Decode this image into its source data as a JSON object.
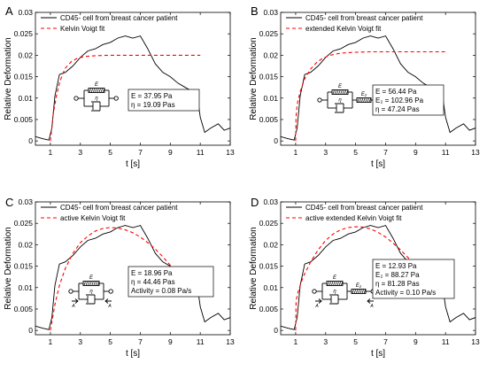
{
  "chart_data": [
    {
      "panel_label": "A",
      "type": "line",
      "xlabel": "t [s]",
      "ylabel": "Relative Deformation",
      "xlim": [
        0,
        13
      ],
      "ylim": [
        -0.001,
        0.03
      ],
      "xticks": [
        1,
        3,
        5,
        7,
        9,
        11,
        13
      ],
      "yticks": [
        0,
        0.005,
        0.01,
        0.015,
        0.02,
        0.025,
        0.03
      ],
      "legend_position": "top-left",
      "series": [
        {
          "name": "CD45- cell from breast cancer patient",
          "style": "solid",
          "color": "#000000",
          "x": [
            0.0,
            0.5,
            0.9,
            1.1,
            1.3,
            1.6,
            2.0,
            2.5,
            3.0,
            3.5,
            4.0,
            4.5,
            5.0,
            5.5,
            6.0,
            6.5,
            7.0,
            7.5,
            8.0,
            8.5,
            9.0,
            9.5,
            10.0,
            10.5,
            10.8,
            11.0,
            11.3,
            11.7,
            12.2,
            12.6,
            13.0
          ],
          "y": [
            0.001,
            0.0005,
            0.0002,
            0.003,
            0.0105,
            0.0155,
            0.016,
            0.0175,
            0.0195,
            0.021,
            0.0215,
            0.0225,
            0.023,
            0.024,
            0.0245,
            0.024,
            0.0245,
            0.0215,
            0.018,
            0.016,
            0.015,
            0.0135,
            0.0125,
            0.0115,
            0.0105,
            0.0055,
            0.002,
            0.003,
            0.004,
            0.0025,
            0.003
          ]
        },
        {
          "name": "Kelvin Voigt fit",
          "style": "dashed",
          "color": "#ff0000",
          "x": [
            1.0,
            1.2,
            1.4,
            1.6,
            1.8,
            2.0,
            2.4,
            2.8,
            3.3,
            4.0,
            5.0,
            6.0,
            7.0,
            8.0,
            9.0,
            10.0,
            11.0
          ],
          "y": [
            0.0,
            0.0065,
            0.0105,
            0.0135,
            0.0155,
            0.017,
            0.0185,
            0.0193,
            0.0197,
            0.0199,
            0.02,
            0.02,
            0.02,
            0.02,
            0.02,
            0.02,
            0.02
          ]
        }
      ],
      "params": [
        "E = 37.95 Pa",
        "η = 19.09 Pas"
      ],
      "model": "kelvin-voigt"
    },
    {
      "panel_label": "B",
      "type": "line",
      "xlabel": "t [s]",
      "ylabel": "Relative Deformation",
      "xlim": [
        0,
        13
      ],
      "ylim": [
        -0.001,
        0.03
      ],
      "xticks": [
        1,
        3,
        5,
        7,
        9,
        11,
        13
      ],
      "yticks": [
        0,
        0.005,
        0.01,
        0.015,
        0.02,
        0.025,
        0.03
      ],
      "legend_position": "top-left",
      "series": [
        {
          "name": "CD45- cell from breast cancer patient",
          "style": "solid",
          "color": "#000000",
          "x": [
            0.0,
            0.5,
            0.9,
            1.1,
            1.3,
            1.6,
            2.0,
            2.5,
            3.0,
            3.5,
            4.0,
            4.5,
            5.0,
            5.5,
            6.0,
            6.5,
            7.0,
            7.5,
            8.0,
            8.5,
            9.0,
            9.5,
            10.0,
            10.5,
            10.8,
            11.0,
            11.3,
            11.7,
            12.2,
            12.6,
            13.0
          ],
          "y": [
            0.001,
            0.0005,
            0.0002,
            0.003,
            0.0105,
            0.0155,
            0.016,
            0.0175,
            0.0195,
            0.021,
            0.0215,
            0.0225,
            0.023,
            0.024,
            0.0245,
            0.024,
            0.0245,
            0.0215,
            0.018,
            0.016,
            0.015,
            0.0135,
            0.0125,
            0.0115,
            0.0105,
            0.0055,
            0.002,
            0.003,
            0.004,
            0.0025,
            0.003
          ]
        },
        {
          "name": "extended Kelvin Voigt fit",
          "style": "dashed",
          "color": "#ff0000",
          "x": [
            1.0,
            1.02,
            1.1,
            1.3,
            1.6,
            2.0,
            2.4,
            2.8,
            3.3,
            4.0,
            5.0,
            6.0,
            7.0,
            8.0,
            9.0,
            10.0,
            11.0
          ],
          "y": [
            0.0,
            0.0055,
            0.0085,
            0.0115,
            0.0145,
            0.0168,
            0.0183,
            0.0193,
            0.02,
            0.0205,
            0.0207,
            0.0208,
            0.0208,
            0.0208,
            0.0208,
            0.0208,
            0.0208
          ]
        }
      ],
      "params": [
        "E = 56.44 Pa",
        "E₂ = 102.96 Pa",
        "η = 47.24 Pas"
      ],
      "model": "extended-kelvin-voigt"
    },
    {
      "panel_label": "C",
      "type": "line",
      "xlabel": "t [s]",
      "ylabel": "Relative Deformation",
      "xlim": [
        0,
        13
      ],
      "ylim": [
        -0.001,
        0.03
      ],
      "xticks": [
        1,
        3,
        5,
        7,
        9,
        11,
        13
      ],
      "yticks": [
        0,
        0.005,
        0.01,
        0.015,
        0.02,
        0.025,
        0.03
      ],
      "legend_position": "top-left",
      "series": [
        {
          "name": "CD45- cell from breast cancer patient",
          "style": "solid",
          "color": "#000000",
          "x": [
            0.0,
            0.5,
            0.9,
            1.1,
            1.3,
            1.6,
            2.0,
            2.5,
            3.0,
            3.5,
            4.0,
            4.5,
            5.0,
            5.5,
            6.0,
            6.5,
            7.0,
            7.5,
            8.0,
            8.5,
            9.0,
            9.5,
            10.0,
            10.5,
            10.8,
            11.0,
            11.3,
            11.7,
            12.2,
            12.6,
            13.0
          ],
          "y": [
            0.001,
            0.0005,
            0.0002,
            0.003,
            0.0105,
            0.0155,
            0.016,
            0.0175,
            0.0195,
            0.021,
            0.0215,
            0.0225,
            0.023,
            0.024,
            0.0245,
            0.024,
            0.0245,
            0.0215,
            0.018,
            0.016,
            0.015,
            0.0135,
            0.0125,
            0.0115,
            0.0105,
            0.0055,
            0.002,
            0.003,
            0.004,
            0.0025,
            0.003
          ]
        },
        {
          "name": "active Kelvin Voigt fit",
          "style": "dashed",
          "color": "#ff0000",
          "x": [
            1.0,
            1.3,
            1.6,
            2.0,
            2.5,
            3.0,
            3.5,
            4.0,
            4.5,
            5.0,
            5.5,
            6.0,
            6.5,
            7.0,
            7.5,
            8.0,
            8.5,
            9.0,
            9.5,
            10.0,
            10.3
          ],
          "y": [
            0.0,
            0.006,
            0.0105,
            0.0145,
            0.018,
            0.0205,
            0.022,
            0.0232,
            0.0238,
            0.024,
            0.0239,
            0.0235,
            0.0228,
            0.0218,
            0.0205,
            0.019,
            0.0172,
            0.0152,
            0.013,
            0.0105,
            0.0095
          ]
        }
      ],
      "params": [
        "E = 18.96 Pa",
        "η = 44.46 Pas",
        "Activity = 0.08 Pa/s"
      ],
      "model": "active-kelvin-voigt"
    },
    {
      "panel_label": "D",
      "type": "line",
      "xlabel": "t [s]",
      "ylabel": "Relative Deformation",
      "xlim": [
        0,
        13
      ],
      "ylim": [
        -0.001,
        0.03
      ],
      "xticks": [
        1,
        3,
        5,
        7,
        9,
        11,
        13
      ],
      "yticks": [
        0,
        0.005,
        0.01,
        0.015,
        0.02,
        0.025,
        0.03
      ],
      "legend_position": "top-left",
      "series": [
        {
          "name": "CD45- cell from breast cancer patient",
          "style": "solid",
          "color": "#000000",
          "x": [
            0.0,
            0.5,
            0.9,
            1.1,
            1.3,
            1.6,
            2.0,
            2.5,
            3.0,
            3.5,
            4.0,
            4.5,
            5.0,
            5.5,
            6.0,
            6.5,
            7.0,
            7.5,
            8.0,
            8.5,
            9.0,
            9.5,
            10.0,
            10.5,
            10.8,
            11.0,
            11.3,
            11.7,
            12.2,
            12.6,
            13.0
          ],
          "y": [
            0.001,
            0.0005,
            0.0002,
            0.003,
            0.0105,
            0.0155,
            0.016,
            0.0175,
            0.0195,
            0.021,
            0.0215,
            0.0225,
            0.023,
            0.024,
            0.0245,
            0.024,
            0.0245,
            0.0215,
            0.018,
            0.016,
            0.015,
            0.0135,
            0.0125,
            0.0115,
            0.0105,
            0.0055,
            0.002,
            0.003,
            0.004,
            0.0025,
            0.003
          ]
        },
        {
          "name": "active extended Kelvin Voigt fit",
          "style": "dashed",
          "color": "#ff0000",
          "x": [
            1.0,
            1.03,
            1.2,
            1.5,
            2.0,
            2.5,
            3.0,
            3.5,
            4.0,
            4.5,
            5.0,
            5.5,
            6.0,
            6.5,
            7.0,
            7.5,
            8.0,
            8.5,
            9.0,
            9.5,
            10.0,
            10.3
          ],
          "y": [
            0.0,
            0.007,
            0.0095,
            0.0125,
            0.016,
            0.0188,
            0.021,
            0.0225,
            0.0235,
            0.024,
            0.0242,
            0.0241,
            0.0237,
            0.0229,
            0.0218,
            0.0204,
            0.0188,
            0.017,
            0.015,
            0.0128,
            0.0105,
            0.0095
          ]
        }
      ],
      "params": [
        "E = 12.93 Pa",
        "E₂ = 88.27 Pa",
        "η = 81.28 Pas",
        "Activity = 0.10 Pa/s"
      ],
      "model": "active-extended-kelvin-voigt"
    }
  ],
  "schematic": {
    "spring_label": "E",
    "spring2_label": "E₂",
    "dashpot_label": "η",
    "force_label": "A"
  }
}
